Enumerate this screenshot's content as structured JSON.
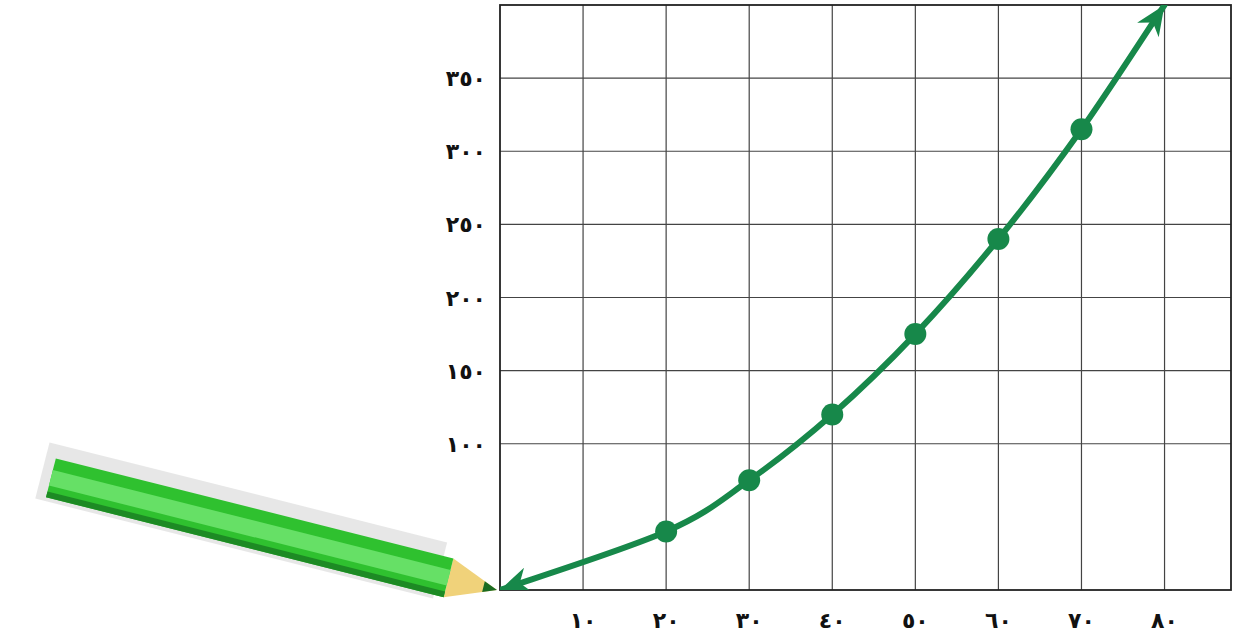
{
  "chart_data": {
    "type": "line",
    "x": [
      0,
      20,
      30,
      40,
      50,
      60,
      70,
      80
    ],
    "values": [
      0,
      40,
      75,
      120,
      175,
      240,
      315,
      400
    ],
    "color": "#17884a",
    "marker": "circle",
    "xlim": [
      0,
      88
    ],
    "ylim": [
      0,
      400
    ],
    "xticks": [
      {
        "value": 10,
        "label": "١٠"
      },
      {
        "value": 20,
        "label": "٢٠"
      },
      {
        "value": 30,
        "label": "٣٠"
      },
      {
        "value": 40,
        "label": "٤٠"
      },
      {
        "value": 50,
        "label": "٥٠"
      },
      {
        "value": 60,
        "label": "٦٠"
      },
      {
        "value": 70,
        "label": "٧٠"
      },
      {
        "value": 80,
        "label": "٨٠"
      }
    ],
    "yticks": [
      {
        "value": 100,
        "label": "١٠٠"
      },
      {
        "value": 150,
        "label": "١٥٠"
      },
      {
        "value": 200,
        "label": "٢٠٠"
      },
      {
        "value": 250,
        "label": "٢٥٠"
      },
      {
        "value": 300,
        "label": "٣٠٠"
      },
      {
        "value": 350,
        "label": "٣٥٠"
      }
    ],
    "grid": true
  }
}
